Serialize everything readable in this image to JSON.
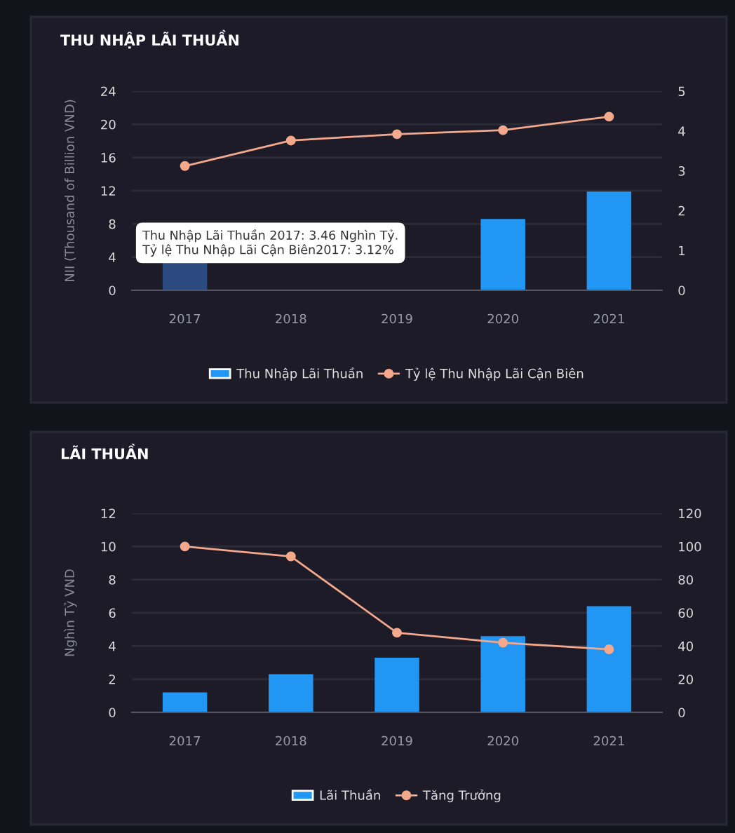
{
  "chart_data": [
    {
      "type": "bar",
      "title": "THU NHẬP LÃI THUẦN",
      "ylabel": "NII (Thousand of Billion VND)",
      "categories": [
        "2017",
        "2018",
        "2019",
        "2020",
        "2021"
      ],
      "series": [
        {
          "name": "Thu Nhập Lãi Thuần",
          "colors": [
            "#2a4a80",
            "#2196f3",
            "#2196f3",
            "#2196f3",
            "#2196f3"
          ],
          "color": "#2196f3",
          "values": [
            3.46,
            null,
            null,
            8.6,
            11.9
          ]
        },
        {
          "name": "Tỷ lệ Thu Nhập Lãi Cận Biên",
          "type": "line",
          "axis": "y2",
          "color": "#f4a88c",
          "values": [
            3.12,
            3.76,
            3.92,
            4.02,
            4.36
          ]
        }
      ],
      "ylim": [
        0,
        24
      ],
      "yticks": [
        0,
        4,
        8,
        12,
        16,
        20,
        24
      ],
      "y2lim": [
        0,
        5
      ],
      "y2ticks": [
        0,
        1,
        2,
        3,
        4,
        5
      ],
      "annotations": [
        {
          "text": "Thu Nhập Lãi Thuần 2017: 3.46 Nghìn Tỷ.\nTỷ lệ Thu Nhập Lãi Cận Biên2017: 3.12%",
          "x": "2017",
          "y": 3.46
        }
      ],
      "grid": "y",
      "legend": "bottom",
      "marker": "circle",
      "line_style": "solid"
    },
    {
      "type": "bar",
      "title": "LÃI THUẦN",
      "ylabel": "Nghìn Tỷ VND",
      "categories": [
        "2017",
        "2018",
        "2019",
        "2020",
        "2021"
      ],
      "series": [
        {
          "name": "Lãi Thuần",
          "color": "#2196f3",
          "values": [
            1.2,
            2.3,
            3.3,
            4.6,
            6.4
          ]
        },
        {
          "name": "Tăng Trưởng",
          "type": "line",
          "axis": "y2",
          "color": "#f4a88c",
          "values": [
            100,
            94,
            48,
            42,
            38
          ]
        }
      ],
      "ylim": [
        0,
        12
      ],
      "yticks": [
        0,
        2,
        4,
        6,
        8,
        10,
        12
      ],
      "y2lim": [
        0,
        120
      ],
      "y2ticks": [
        0,
        20,
        40,
        60,
        80,
        100,
        120
      ],
      "grid": "y",
      "legend": "bottom",
      "marker": "circle",
      "line_style": "solid"
    }
  ]
}
